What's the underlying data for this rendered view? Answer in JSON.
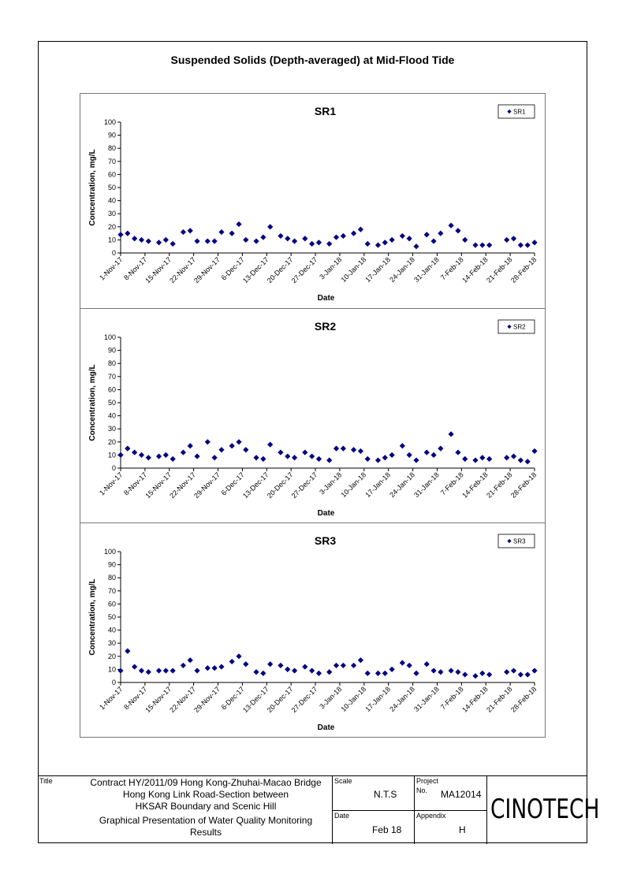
{
  "page": {
    "title": "Suspended Solids (Depth-averaged) at Mid-Flood Tide"
  },
  "title_block": {
    "title_label": "Title",
    "title_line1": "Contract HY/2011/09 Hong Kong-Zhuhai-Macao Bridge",
    "title_line2": "Hong Kong Link Road-Section between",
    "title_line3": "HKSAR Boundary and Scenic Hill",
    "subtitle_line1": "Graphical Presentation of Water Quality Monitoring",
    "subtitle_line2": "Results",
    "scale_label": "Scale",
    "scale_value": "N.T.S",
    "project_label": "Project",
    "project_no_label": "No.",
    "project_no": "MA12014",
    "date_label": "Date",
    "date_value": "Feb 18",
    "appendix_label": "Appendix",
    "appendix_value": "H",
    "logo_text": "CINOTECH"
  },
  "chart_data": [
    {
      "type": "scatter",
      "title": "SR1",
      "xlabel": "Date",
      "ylabel": "Concentration, mg/L",
      "ylim": [
        0,
        100
      ],
      "yticks": [
        0,
        10,
        20,
        30,
        40,
        50,
        60,
        70,
        80,
        90,
        100
      ],
      "xlim": [
        0,
        119
      ],
      "xticks": [
        0,
        7,
        14,
        21,
        28,
        35,
        42,
        49,
        56,
        63,
        70,
        77,
        84,
        91,
        98,
        105,
        112,
        119
      ],
      "xtick_labels": [
        "1-Nov-17",
        "8-Nov-17",
        "15-Nov-17",
        "22-Nov-17",
        "29-Nov-17",
        "6-Dec-17",
        "13-Dec-17",
        "20-Dec-17",
        "27-Dec-17",
        "3-Jan-18",
        "10-Jan-18",
        "17-Jan-18",
        "24-Jan-18",
        "31-Jan-18",
        "7-Feb-18",
        "14-Feb-18",
        "21-Feb-18",
        "28-Feb-18"
      ],
      "legend": "top-right",
      "series": [
        {
          "name": "SR1",
          "color": "#000080",
          "x": [
            0,
            2,
            4,
            6,
            8,
            11,
            13,
            15,
            18,
            20,
            22,
            25,
            27,
            29,
            32,
            34,
            36,
            39,
            41,
            43,
            46,
            48,
            50,
            53,
            55,
            57,
            60,
            62,
            64,
            67,
            69,
            71,
            74,
            76,
            78,
            81,
            83,
            85,
            88,
            90,
            92,
            95,
            97,
            99,
            102,
            104,
            106,
            111,
            113,
            115,
            117,
            119
          ],
          "y": [
            14,
            15,
            11,
            10,
            9,
            8,
            10,
            7,
            16,
            17,
            9,
            9,
            9,
            16,
            15,
            22,
            10,
            9,
            12,
            20,
            13,
            11,
            9,
            11,
            7,
            8,
            7,
            12,
            13,
            15,
            18,
            7,
            6,
            8,
            10,
            13,
            11,
            5,
            14,
            9,
            15,
            21,
            17,
            10,
            6,
            6,
            6,
            10,
            11,
            6,
            6,
            8
          ]
        }
      ]
    },
    {
      "type": "scatter",
      "title": "SR2",
      "xlabel": "Date",
      "ylabel": "Concentration, mg/L",
      "ylim": [
        0,
        100
      ],
      "yticks": [
        0,
        10,
        20,
        30,
        40,
        50,
        60,
        70,
        80,
        90,
        100
      ],
      "xlim": [
        0,
        119
      ],
      "xticks": [
        0,
        7,
        14,
        21,
        28,
        35,
        42,
        49,
        56,
        63,
        70,
        77,
        84,
        91,
        98,
        105,
        112,
        119
      ],
      "xtick_labels": [
        "1-Nov-17",
        "8-Nov-17",
        "15-Nov-17",
        "22-Nov-17",
        "29-Nov-17",
        "6-Dec-17",
        "13-Dec-17",
        "20-Dec-17",
        "27-Dec-17",
        "3-Jan-18",
        "10-Jan-18",
        "17-Jan-18",
        "24-Jan-18",
        "31-Jan-18",
        "7-Feb-18",
        "14-Feb-18",
        "21-Feb-18",
        "28-Feb-18"
      ],
      "legend": "top-right",
      "series": [
        {
          "name": "SR2",
          "color": "#000080",
          "x": [
            0,
            2,
            4,
            6,
            8,
            11,
            13,
            15,
            18,
            20,
            22,
            25,
            27,
            29,
            32,
            34,
            36,
            39,
            41,
            43,
            46,
            48,
            50,
            53,
            55,
            57,
            60,
            62,
            64,
            67,
            69,
            71,
            74,
            76,
            78,
            81,
            83,
            85,
            88,
            90,
            92,
            95,
            97,
            99,
            102,
            104,
            106,
            111,
            113,
            115,
            117,
            119
          ],
          "y": [
            10,
            15,
            12,
            10,
            8,
            9,
            10,
            7,
            12,
            17,
            9,
            20,
            8,
            14,
            17,
            20,
            14,
            8,
            7,
            18,
            12,
            9,
            8,
            12,
            9,
            7,
            6,
            15,
            15,
            14,
            13,
            7,
            6,
            8,
            10,
            17,
            10,
            6,
            12,
            10,
            15,
            26,
            12,
            7,
            6,
            8,
            7,
            8,
            9,
            6,
            5,
            13
          ]
        }
      ]
    },
    {
      "type": "scatter",
      "title": "SR3",
      "xlabel": "Date",
      "ylabel": "Concentration, mg/L",
      "ylim": [
        0,
        100
      ],
      "yticks": [
        0,
        10,
        20,
        30,
        40,
        50,
        60,
        70,
        80,
        90,
        100
      ],
      "xlim": [
        0,
        119
      ],
      "xticks": [
        0,
        7,
        14,
        21,
        28,
        35,
        42,
        49,
        56,
        63,
        70,
        77,
        84,
        91,
        98,
        105,
        112,
        119
      ],
      "xtick_labels": [
        "1-Nov-17",
        "8-Nov-17",
        "15-Nov-17",
        "22-Nov-17",
        "29-Nov-17",
        "6-Dec-17",
        "13-Dec-17",
        "20-Dec-17",
        "27-Dec-17",
        "3-Jan-18",
        "10-Jan-18",
        "17-Jan-18",
        "24-Jan-18",
        "31-Jan-18",
        "7-Feb-18",
        "14-Feb-18",
        "21-Feb-18",
        "28-Feb-18"
      ],
      "legend": "top-right",
      "series": [
        {
          "name": "SR3",
          "color": "#000080",
          "x": [
            0,
            2,
            4,
            6,
            8,
            11,
            13,
            15,
            18,
            20,
            22,
            25,
            27,
            29,
            32,
            34,
            36,
            39,
            41,
            43,
            46,
            48,
            50,
            53,
            55,
            57,
            60,
            62,
            64,
            67,
            69,
            71,
            74,
            76,
            78,
            81,
            83,
            85,
            88,
            90,
            92,
            95,
            97,
            99,
            102,
            104,
            106,
            111,
            113,
            115,
            117,
            119
          ],
          "y": [
            9,
            24,
            12,
            9,
            8,
            9,
            9,
            9,
            13,
            17,
            9,
            11,
            11,
            12,
            16,
            20,
            14,
            8,
            7,
            14,
            13,
            10,
            9,
            12,
            9,
            7,
            8,
            13,
            13,
            13,
            17,
            7,
            7,
            7,
            10,
            15,
            13,
            7,
            14,
            9,
            8,
            9,
            8,
            6,
            5,
            7,
            6,
            8,
            9,
            6,
            6,
            9
          ]
        }
      ]
    }
  ]
}
